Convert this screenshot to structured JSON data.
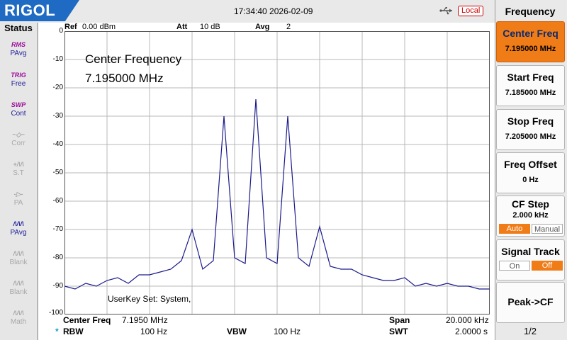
{
  "brand": "RIGOL",
  "topbar": {
    "datetime": "17:34:40 2026-02-09",
    "remote_status": "Local",
    "icons": [
      "usb-icon"
    ]
  },
  "status_panel": {
    "title": "Status",
    "items": [
      {
        "icon": "RMS",
        "label": "PAvg",
        "state": "on"
      },
      {
        "icon": "TRIG",
        "label": "Free",
        "state": "on"
      },
      {
        "icon": "SWP",
        "label": "Cont",
        "state": "on"
      },
      {
        "icon": "",
        "label": "Corr",
        "state": "off"
      },
      {
        "icon": "",
        "label": "S.T",
        "state": "off"
      },
      {
        "icon": "",
        "label": "PA",
        "state": "off"
      },
      {
        "icon": "",
        "label": "PAvg",
        "state": "on"
      },
      {
        "icon": "",
        "label": "Blank",
        "state": "off"
      },
      {
        "icon": "",
        "label": "Blank",
        "state": "off"
      },
      {
        "icon": "",
        "label": "Math",
        "state": "off"
      }
    ]
  },
  "measurement_header": {
    "ref_label": "Ref",
    "ref_value": "0.00 dBm",
    "att_label": "Att",
    "att_value": "10 dB",
    "avg_label": "Avg",
    "avg_value": "2"
  },
  "plot": {
    "overlay_title": "Center Frequency",
    "overlay_value": "7.195000 MHz",
    "userkey_text": "UserKey Set:    System,",
    "y_ticks": [
      "0",
      "-10",
      "-20",
      "-30",
      "-40",
      "-50",
      "-60",
      "-70",
      "-80",
      "-90",
      "-100"
    ]
  },
  "chart_data": {
    "type": "line",
    "xlim": [
      7.185,
      7.205
    ],
    "ylim": [
      -100,
      0
    ],
    "grid": true,
    "x": [
      7.185,
      7.1855,
      7.186,
      7.1865,
      7.187,
      7.1875,
      7.188,
      7.1885,
      7.189,
      7.1895,
      7.19,
      7.1905,
      7.191,
      7.1915,
      7.192,
      7.1925,
      7.193,
      7.1935,
      7.194,
      7.1945,
      7.195,
      7.1955,
      7.196,
      7.1965,
      7.197,
      7.1975,
      7.198,
      7.1985,
      7.199,
      7.1995,
      7.2,
      7.2005,
      7.201,
      7.2015,
      7.202,
      7.2025,
      7.203,
      7.2035,
      7.204,
      7.2045,
      7.205
    ],
    "y": [
      -90,
      -91,
      -89,
      -90,
      -88,
      -87,
      -89,
      -86,
      -86,
      -85,
      -84,
      -81,
      -70,
      -84,
      -81,
      -30,
      -80,
      -82,
      -24,
      -80,
      -82,
      -30,
      -80,
      -83,
      -69,
      -83,
      -84,
      -84,
      -86,
      -87,
      -88,
      -88,
      -87,
      -90,
      -89,
      -90,
      -89,
      -90,
      -90,
      -91,
      -91
    ]
  },
  "footer": {
    "center_label": "Center Freq",
    "center_value": "7.1950 MHz",
    "span_label": "Span",
    "span_value": "20.000 kHz",
    "rbw_marker": "*",
    "rbw_label": "RBW",
    "rbw_value": "100 Hz",
    "vbw_label": "VBW",
    "vbw_value": "100 Hz",
    "swt_label": "SWT",
    "swt_value": "2.0000 s"
  },
  "softkeys": {
    "title": "Frequency",
    "keys": [
      {
        "label": "Center Freq",
        "value": "7.195000 MHz"
      },
      {
        "label": "Start Freq",
        "value": "7.185000 MHz"
      },
      {
        "label": "Stop Freq",
        "value": "7.205000 MHz"
      },
      {
        "label": "Freq Offset",
        "value": "0 Hz"
      },
      {
        "label": "CF Step",
        "value": "2.000 kHz",
        "opt_a": "Auto",
        "opt_b": "Manual"
      },
      {
        "label": "Signal Track",
        "opt_a": "On",
        "opt_b": "Off"
      },
      {
        "label": "Peak->CF"
      }
    ],
    "page": "1/2"
  },
  "colors": {
    "brand": "#1f6bc4",
    "selected_key": "#f07c17",
    "trace": "#1a1a8c"
  }
}
